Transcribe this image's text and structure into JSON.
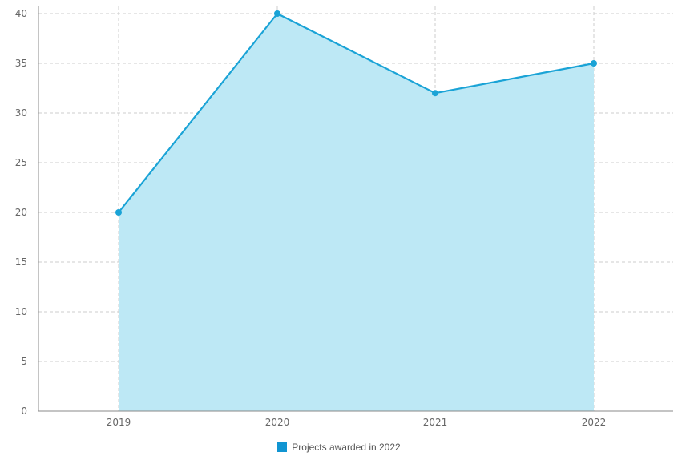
{
  "chart_data": {
    "type": "area",
    "categories": [
      "2019",
      "2020",
      "2021",
      "2022"
    ],
    "series": [
      {
        "name": "Projects awarded in 2022",
        "values": [
          20,
          40,
          32,
          35
        ]
      }
    ],
    "y_ticks": [
      0,
      5,
      10,
      15,
      20,
      25,
      30,
      35,
      40
    ],
    "ylim": [
      0,
      40
    ],
    "grid": true,
    "legend_position": "bottom-center",
    "colors": {
      "line": "#1aa3d6",
      "fill": "#bde8f5",
      "point": "#1aa3d6",
      "legend_swatch": "#1195d2",
      "grid": "#cccccc",
      "axis": "#888888"
    }
  }
}
